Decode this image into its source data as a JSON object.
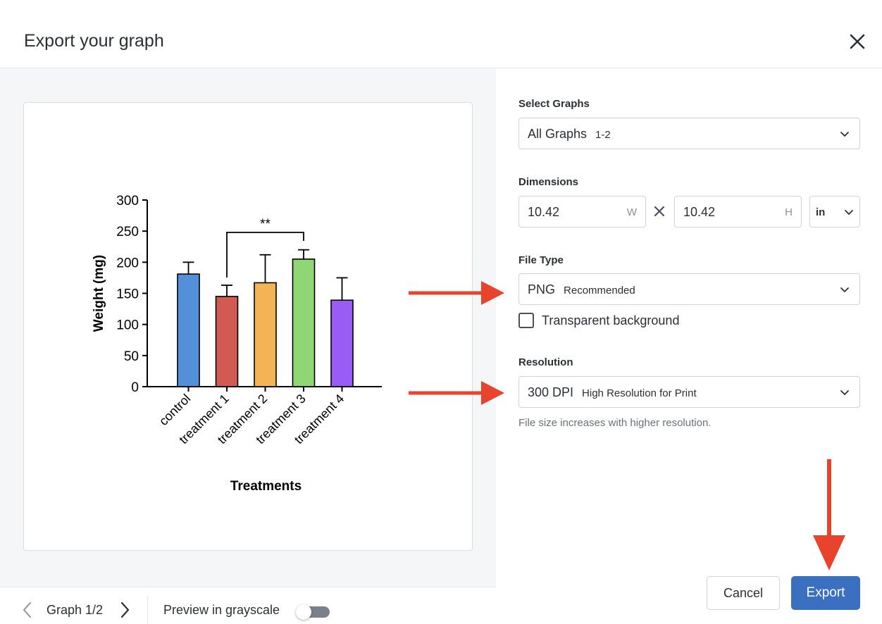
{
  "dialog": {
    "title": "Export your graph"
  },
  "preview": {
    "nav_label": "Graph 1/2",
    "grayscale_label": "Preview in grayscale",
    "grayscale_on": false
  },
  "chart_data": {
    "type": "bar",
    "title": "",
    "xlabel": "Treatments",
    "ylabel": "Weight (mg)",
    "ylim": [
      0,
      300
    ],
    "yticks": [
      0,
      50,
      100,
      150,
      200,
      250,
      300
    ],
    "categories": [
      "control",
      "treatment 1",
      "treatment 2",
      "treatment 3",
      "treatment 4"
    ],
    "values": [
      181,
      145,
      167,
      205,
      139
    ],
    "errors": [
      19,
      18,
      45,
      15,
      36
    ],
    "colors": [
      "#5490d8",
      "#d25a52",
      "#f4b355",
      "#8fd774",
      "#9b5bf5"
    ],
    "significance": {
      "from": 1,
      "to": 3,
      "label": "**"
    },
    "grid": false
  },
  "settings": {
    "select_graphs": {
      "label": "Select Graphs",
      "value": "All Graphs",
      "sub": "1-2"
    },
    "dimensions": {
      "label": "Dimensions",
      "width": "10.42",
      "width_suffix": "W",
      "height": "10.42",
      "height_suffix": "H",
      "unit": "in"
    },
    "file_type": {
      "label": "File Type",
      "value": "PNG",
      "sub": "Recommended"
    },
    "transparent": {
      "label": "Transparent background",
      "checked": false
    },
    "resolution": {
      "label": "Resolution",
      "value": "300 DPI",
      "sub": "High Resolution for Print",
      "hint": "File size increases with higher resolution."
    }
  },
  "buttons": {
    "cancel": "Cancel",
    "export": "Export"
  },
  "colors": {
    "accent": "#3b6fc0",
    "arrow": "#e8432c"
  },
  "icons": [
    "close-icon",
    "chevron-down-icon",
    "chevron-left-icon",
    "chevron-right-icon",
    "times-icon"
  ]
}
